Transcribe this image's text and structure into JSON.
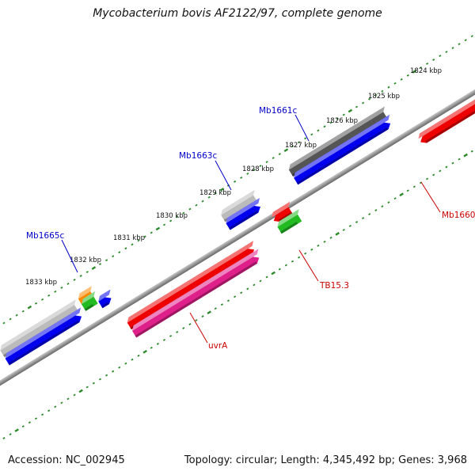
{
  "title": "Mycobacterium bovis AF2122/97, complete genome",
  "footer": {
    "accession": "Accession: NC_002945",
    "summary": "Topology: circular; Length: 4,345,492 bp; Genes: 3,968"
  },
  "ticks": [
    "1824 kbp",
    "1825 kbp",
    "1826 kbp",
    "1827 kbp",
    "1828 kbp",
    "1829 kbp",
    "1830 kbp",
    "1831 kbp",
    "1832 kbp",
    "1833 kbp"
  ],
  "labels": [
    {
      "text": "Mb1661c",
      "color": "#0000cc"
    },
    {
      "text": "Mb1663c",
      "color": "#0000cc"
    },
    {
      "text": "Mb1665c",
      "color": "#0000cc"
    },
    {
      "text": "Mb1660",
      "color": "#cc0000"
    },
    {
      "text": "TB15.3",
      "color": "#cc0000"
    },
    {
      "text": "uvrA",
      "color": "#cc0000"
    }
  ],
  "colors": {
    "backbone": "#888888",
    "tick": "#2a8a2a",
    "red": "#ee0000",
    "magenta": "#e0208a",
    "blue": "#0000ee",
    "green": "#22bb22",
    "dark_gray": "#555555",
    "light_gray": "#bbbbbb",
    "orange": "#ff8800"
  }
}
